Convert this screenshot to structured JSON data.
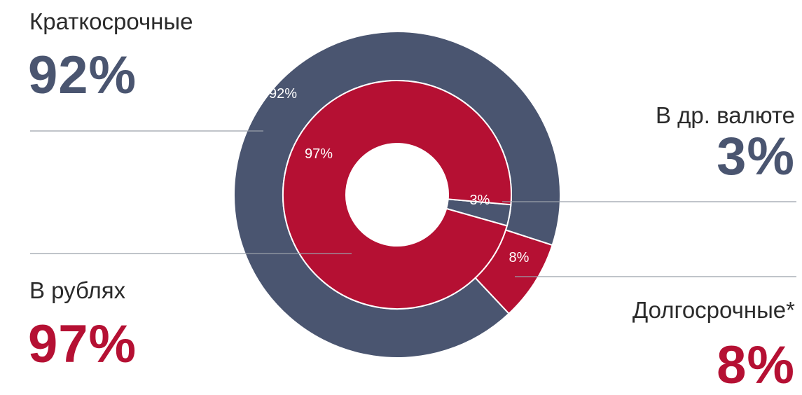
{
  "chart_data": {
    "type": "pie",
    "colors": {
      "dark": "#4a5570",
      "red": "#b51033",
      "line": "#9aa0aa"
    },
    "outer_ring": [
      {
        "label": "Краткосрочные",
        "value": 92,
        "slice_label": "92%",
        "value_label": "92%",
        "color": "#4a5570"
      },
      {
        "label": "Долгосрочные*",
        "value": 8,
        "slice_label": "8%",
        "value_label": "8%",
        "color": "#b51033"
      }
    ],
    "inner_ring": [
      {
        "label": "В рублях",
        "value": 97,
        "slice_label": "97%",
        "value_label": "97%",
        "color": "#b51033"
      },
      {
        "label": "В др. валюте",
        "value": 3,
        "slice_label": "3%",
        "value_label": "3%",
        "color": "#4a5570"
      }
    ]
  }
}
